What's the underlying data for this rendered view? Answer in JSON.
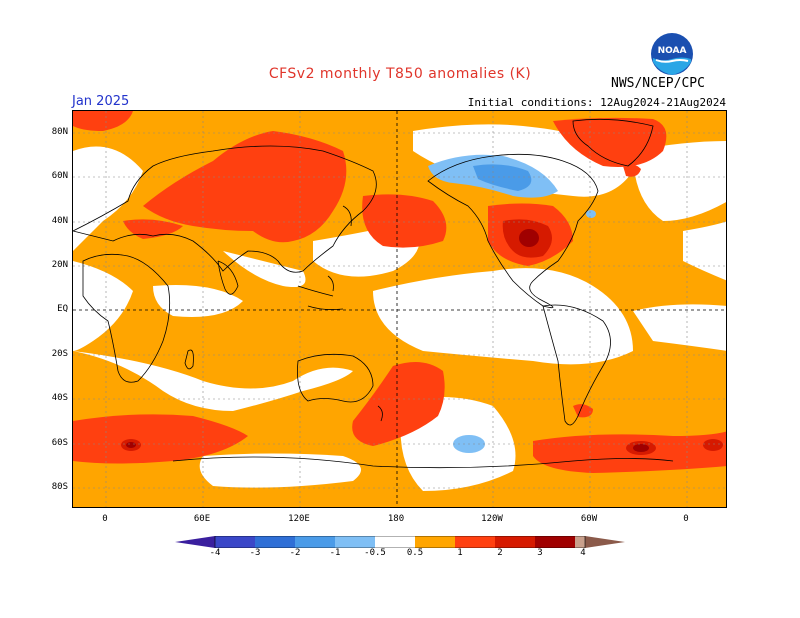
{
  "header": {
    "title": "CFSv2 monthly T850 anomalies (K)",
    "month": "Jan 2025",
    "initial_conditions": "Initial conditions: 12Aug2024-21Aug2024",
    "agency": "NWS/NCEP/CPC",
    "logo_text": "NOAA"
  },
  "axes": {
    "lat_labels": [
      "80N",
      "60N",
      "40N",
      "20N",
      "EQ",
      "20S",
      "40S",
      "60S",
      "80S"
    ],
    "lon_labels": [
      "0",
      "60E",
      "120E",
      "180",
      "120W",
      "60W",
      "0"
    ]
  },
  "colorbar": {
    "labels": [
      "-4",
      "-3",
      "-2",
      "-1",
      "-0.5",
      "0.5",
      "1",
      "2",
      "3",
      "4"
    ],
    "colors": [
      "#3a1f9e",
      "#3a47c8",
      "#2f6fd6",
      "#4a9be8",
      "#7fbff5",
      "#ffffff",
      "#ffa500",
      "#ff4010",
      "#d61a00",
      "#a00000",
      "#c9a08c",
      "#8b5a4a"
    ]
  },
  "colors": {
    "warm_05": "#ffa500",
    "warm_1": "#ff4010",
    "warm_2": "#d61a00",
    "warm_3": "#a00000",
    "cool_05": "#7fbff5",
    "cool_1": "#4a9be8",
    "title": "#e0352b",
    "month": "#2233cc"
  }
}
